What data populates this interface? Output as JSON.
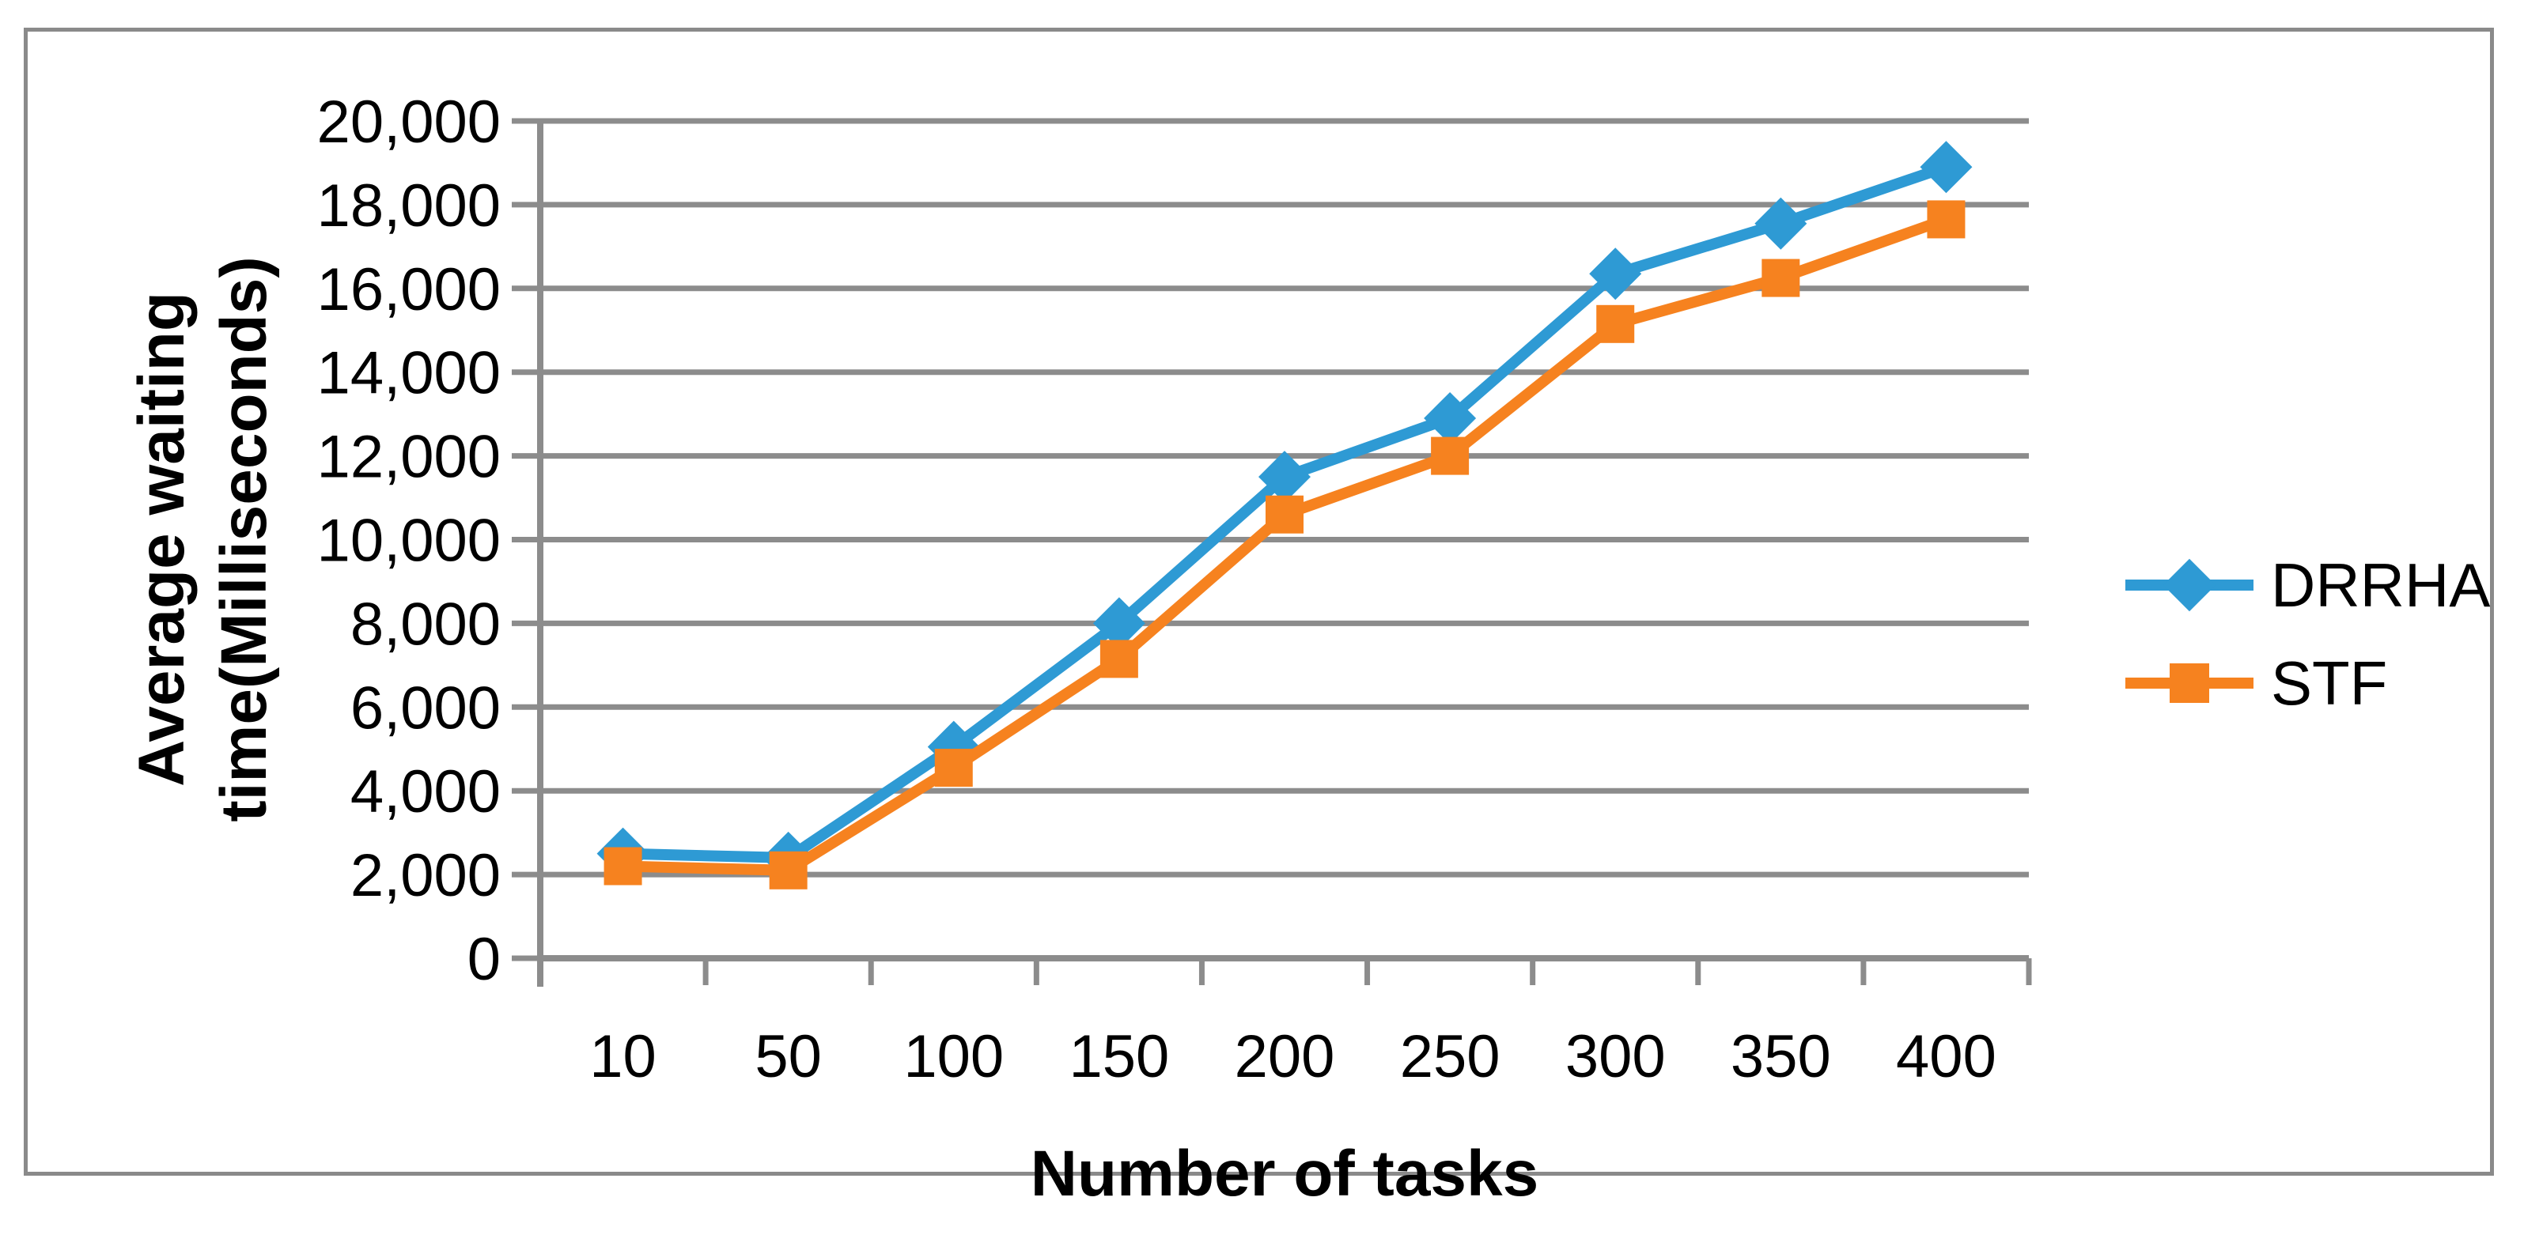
{
  "chart_data": {
    "type": "line",
    "title": "",
    "xlabel": "Number of tasks",
    "ylabel": "Average waiting time(Milliseconds)",
    "ylabel_lines": [
      "Average waiting",
      "time(Milliseconds)"
    ],
    "categories": [
      "10",
      "50",
      "100",
      "150",
      "200",
      "250",
      "300",
      "350",
      "400"
    ],
    "series": [
      {
        "name": "DRRHA",
        "color": "#2E9AD4",
        "marker": "diamond",
        "values": [
          2500,
          2400,
          5050,
          8000,
          11500,
          12900,
          16350,
          17550,
          18900
        ]
      },
      {
        "name": "STF",
        "color": "#F6821F",
        "marker": "square",
        "values": [
          2200,
          2100,
          4550,
          7150,
          10600,
          12000,
          15150,
          16250,
          17650
        ]
      }
    ],
    "ylim": [
      0,
      20000
    ],
    "ytick_step": 2000,
    "ytick_labels": [
      "0",
      "2,000",
      "4,000",
      "6,000",
      "8,000",
      "10,000",
      "12,000",
      "14,000",
      "16,000",
      "18,000",
      "20,000"
    ],
    "grid": "horizontal-only",
    "legend_position": "right",
    "gridline_color": "#8C8C8C",
    "axis_color": "#8C8C8C",
    "text_color": "#000000",
    "frame_color": "#8A8A8A"
  }
}
